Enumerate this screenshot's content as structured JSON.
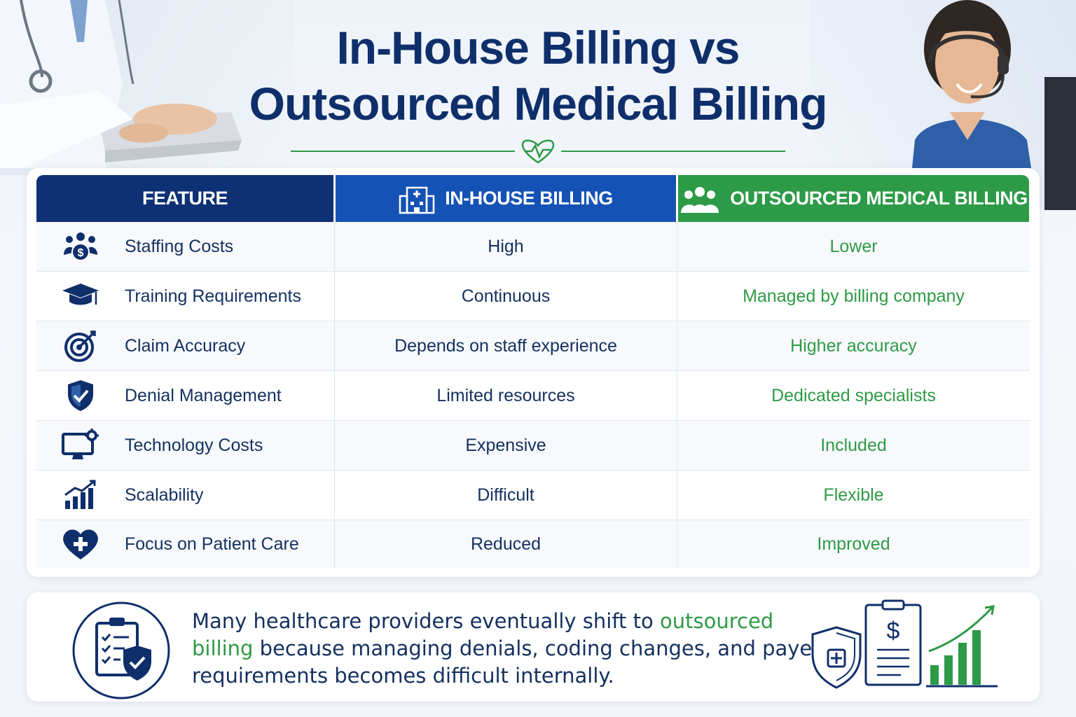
{
  "title": {
    "line1": "In-House Billing vs",
    "line2": "Outsourced Medical Billing"
  },
  "colors": {
    "navy": "#0e3175",
    "blue": "#1552b5",
    "green": "#2d9a47",
    "text": "#14305f"
  },
  "table": {
    "headers": {
      "feature": "FEATURE",
      "inhouse": "IN-HOUSE BILLING",
      "inhouse_icon": "hospital-building-icon",
      "outsourced": "OUTSOURCED MEDICAL BILLING",
      "outsourced_icon": "team-group-icon"
    },
    "rows": [
      {
        "icon": "staff-dollar-icon",
        "feature": "Staffing Costs",
        "inhouse": "High",
        "outsourced": "Lower"
      },
      {
        "icon": "graduation-cap-icon",
        "feature": "Training Requirements",
        "inhouse": "Continuous",
        "outsourced": "Managed by billing company"
      },
      {
        "icon": "target-icon",
        "feature": "Claim Accuracy",
        "inhouse": "Depends on staff experience",
        "outsourced": "Higher accuracy"
      },
      {
        "icon": "shield-check-icon",
        "feature": "Denial Management",
        "inhouse": "Limited resources",
        "outsourced": "Dedicated specialists"
      },
      {
        "icon": "monitor-gear-icon",
        "feature": "Technology Costs",
        "inhouse": "Expensive",
        "outsourced": "Included"
      },
      {
        "icon": "growth-chart-icon",
        "feature": "Scalability",
        "inhouse": "Difficult",
        "outsourced": "Flexible"
      },
      {
        "icon": "heart-plus-icon",
        "feature": "Focus on Patient Care",
        "inhouse": "Reduced",
        "outsourced": "Improved"
      }
    ]
  },
  "note": {
    "part1": "Many healthcare providers eventually shift to ",
    "highlight": "outsourced billing",
    "part2": " because managing denials, coding changes, and payer requirements becomes difficult internally.",
    "badge_icon": "clipboard-checklist-shield-icon",
    "art_icon": "billing-growth-illustration"
  }
}
